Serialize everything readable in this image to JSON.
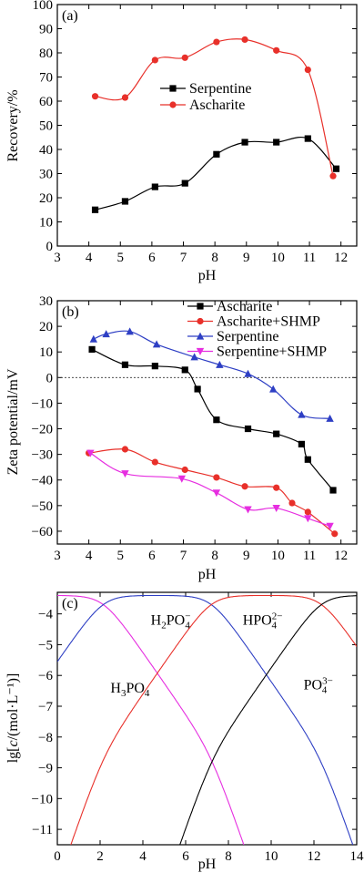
{
  "chart_data": [
    {
      "panel": "(a)",
      "type": "line",
      "xlabel": "pH",
      "ylabel": "Recovery/%",
      "xlim": [
        3,
        12.5
      ],
      "ylim": [
        0,
        100
      ],
      "xticks": [
        3,
        4,
        5,
        6,
        7,
        8,
        9,
        10,
        11,
        12
      ],
      "yticks": [
        0,
        10,
        20,
        30,
        40,
        50,
        60,
        70,
        80,
        90,
        100
      ],
      "legend_position": "middle-right",
      "series": [
        {
          "name": "Serpentine",
          "color": "#000000",
          "marker": "square",
          "x": [
            4.2,
            5.15,
            6.1,
            7.05,
            8.05,
            8.95,
            9.95,
            10.95,
            11.85
          ],
          "y": [
            15,
            18.5,
            24.5,
            26,
            38,
            43,
            43,
            44.5,
            32
          ]
        },
        {
          "name": "Ascharite",
          "color": "#e8302a",
          "marker": "circle",
          "x": [
            4.2,
            5.15,
            6.1,
            7.05,
            8.05,
            8.95,
            9.95,
            10.95,
            11.75
          ],
          "y": [
            62,
            61.5,
            77,
            78,
            84.5,
            85.5,
            81,
            73,
            29
          ]
        }
      ]
    },
    {
      "panel": "(b)",
      "type": "line",
      "xlabel": "pH",
      "ylabel": "Zeta potential/mV",
      "xlim": [
        3,
        12.5
      ],
      "ylim": [
        -65,
        30
      ],
      "xticks": [
        3,
        4,
        5,
        6,
        7,
        8,
        9,
        10,
        11,
        12
      ],
      "yticks": [
        30,
        20,
        10,
        0,
        -10,
        -20,
        -30,
        -40,
        -50,
        -60
      ],
      "zero_line": true,
      "legend_position": "top-right",
      "series": [
        {
          "name": "Ascharite",
          "color": "#000000",
          "marker": "square",
          "x": [
            4.1,
            5.15,
            6.1,
            7.05,
            7.45,
            8.05,
            9.05,
            9.95,
            10.75,
            10.95,
            11.75
          ],
          "y": [
            11,
            5,
            4.5,
            3,
            -4.5,
            -16.5,
            -20,
            -22,
            -26,
            -32,
            -44
          ]
        },
        {
          "name": "Ascharite+SHMP",
          "color": "#e8302a",
          "marker": "circle",
          "x": [
            4.0,
            5.15,
            6.1,
            7.05,
            8.05,
            8.95,
            9.95,
            10.45,
            10.95,
            11.8
          ],
          "y": [
            -29.5,
            -28,
            -33,
            -36,
            -39,
            -42.5,
            -43,
            -49,
            -52.5,
            -61
          ]
        },
        {
          "name": "Serpentine",
          "color": "#2e3fc4",
          "marker": "triangle-up",
          "x": [
            4.15,
            4.55,
            5.3,
            6.15,
            7.35,
            8.15,
            9.05,
            9.85,
            10.75,
            11.65
          ],
          "y": [
            15,
            17,
            18,
            13,
            8,
            5,
            1.5,
            -4.5,
            -14.5,
            -16
          ]
        },
        {
          "name": "Serpentine+SHMP",
          "color": "#e62ee0",
          "marker": "triangle-down",
          "x": [
            4.05,
            5.15,
            6.95,
            8.05,
            9.05,
            9.95,
            10.95,
            11.65
          ],
          "y": [
            -29.5,
            -37.5,
            -39.5,
            -45,
            -51.5,
            -51,
            -55,
            -58
          ]
        }
      ]
    },
    {
      "panel": "(c)",
      "type": "line",
      "xlabel": "pH",
      "ylabel": "lg[c/(mol·L⁻¹)]",
      "xlim": [
        0,
        14
      ],
      "ylim": [
        -11.5,
        -3.3
      ],
      "xticks": [
        0,
        2,
        4,
        6,
        8,
        10,
        12,
        14
      ],
      "yticks": [
        -4,
        -5,
        -6,
        -7,
        -8,
        -9,
        -10,
        -11
      ],
      "total_concentration_log": -3.4,
      "pKa": [
        2.15,
        7.2,
        12.35
      ],
      "series": [
        {
          "name": "H3PO4",
          "color": "#e62ee0",
          "species": 0
        },
        {
          "name": "H2PO4-",
          "color": "#2e3fc4",
          "species": 1
        },
        {
          "name": "HPO42-",
          "color": "#e8302a",
          "species": 2
        },
        {
          "name": "PO43-",
          "color": "#000000",
          "species": 3
        }
      ],
      "annotations": [
        {
          "key": "h3po4",
          "base": "H",
          "sub1": "3",
          "mid": "PO",
          "sub2": "4",
          "sup": "",
          "x": 3.4,
          "y": -6.55
        },
        {
          "key": "h2po4",
          "base": "H",
          "sub1": "2",
          "mid": "PO",
          "sub2": "4",
          "sup": "−",
          "x": 5.3,
          "y": -4.35
        },
        {
          "key": "hpo4",
          "base": "",
          "sub1": "",
          "mid": "HPO",
          "sub2": "4",
          "sup": "2−",
          "x": 9.6,
          "y": -4.35
        },
        {
          "key": "po4",
          "base": "",
          "sub1": "",
          "mid": "PO",
          "sub2": "4",
          "sup": "3−",
          "x": 12.2,
          "y": -6.45
        }
      ]
    }
  ]
}
